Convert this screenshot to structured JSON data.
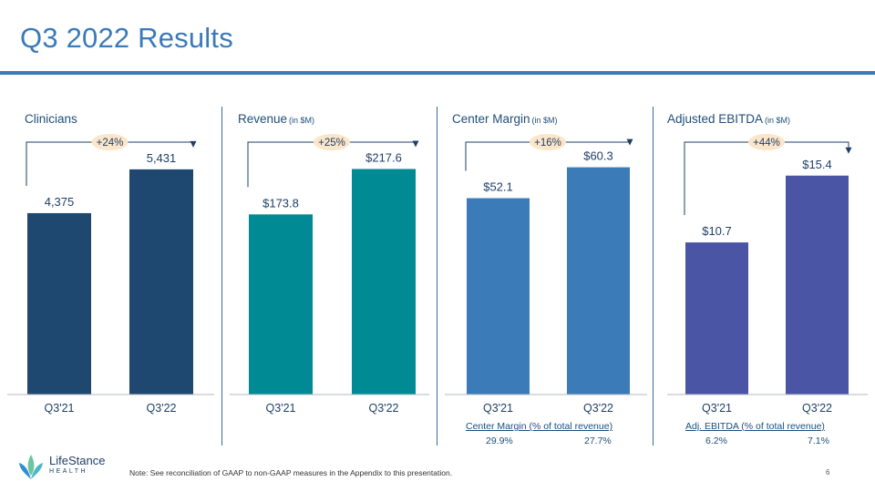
{
  "title": "Q3 2022 Results",
  "note": "Note:  See reconciliation of GAAP to non-GAAP measures in the Appendix to this presentation.",
  "page_number": "6",
  "logo": {
    "name": "LifeStance",
    "sub": "HEALTH"
  },
  "colors": {
    "clinicians": "#1e4870",
    "revenue": "#008a93",
    "center_margin": "#3b7bb8",
    "ebitda": "#4a55a5",
    "accent": "#3a7ab8"
  },
  "chart_data": [
    {
      "type": "bar",
      "title": "Clinicians",
      "unit": "",
      "categories": [
        "Q3'21",
        "Q3'22"
      ],
      "values": [
        4375,
        5431
      ],
      "labels": [
        "4,375",
        "5,431"
      ],
      "growth": "+24%",
      "ylim": [
        0,
        6000
      ]
    },
    {
      "type": "bar",
      "title": "Revenue",
      "unit": "(in $M)",
      "categories": [
        "Q3'21",
        "Q3'22"
      ],
      "values": [
        173.8,
        217.6
      ],
      "labels": [
        "$173.8",
        "$217.6"
      ],
      "growth": "+25%",
      "ylim": [
        0,
        240
      ]
    },
    {
      "type": "bar",
      "title": "Center Margin",
      "unit": "(in $M)",
      "categories": [
        "Q3'21",
        "Q3'22"
      ],
      "values": [
        52.1,
        60.3
      ],
      "labels": [
        "$52.1",
        "$60.3"
      ],
      "growth": "+16%",
      "ylim": [
        0,
        66
      ]
    },
    {
      "type": "bar",
      "title": "Adjusted EBITDA",
      "unit": "(in $M)",
      "categories": [
        "Q3'21",
        "Q3'22"
      ],
      "values": [
        10.7,
        15.4
      ],
      "labels": [
        "$10.7",
        "$15.4"
      ],
      "growth": "+44%",
      "ylim": [
        0,
        17.5
      ]
    }
  ],
  "subtext": [
    null,
    null,
    {
      "label": "Center Margin (% of total revenue)",
      "values": [
        "29.9%",
        "27.7%"
      ]
    },
    {
      "label": "Adj. EBITDA (% of total revenue)",
      "values": [
        "6.2%",
        "7.1%"
      ]
    }
  ]
}
